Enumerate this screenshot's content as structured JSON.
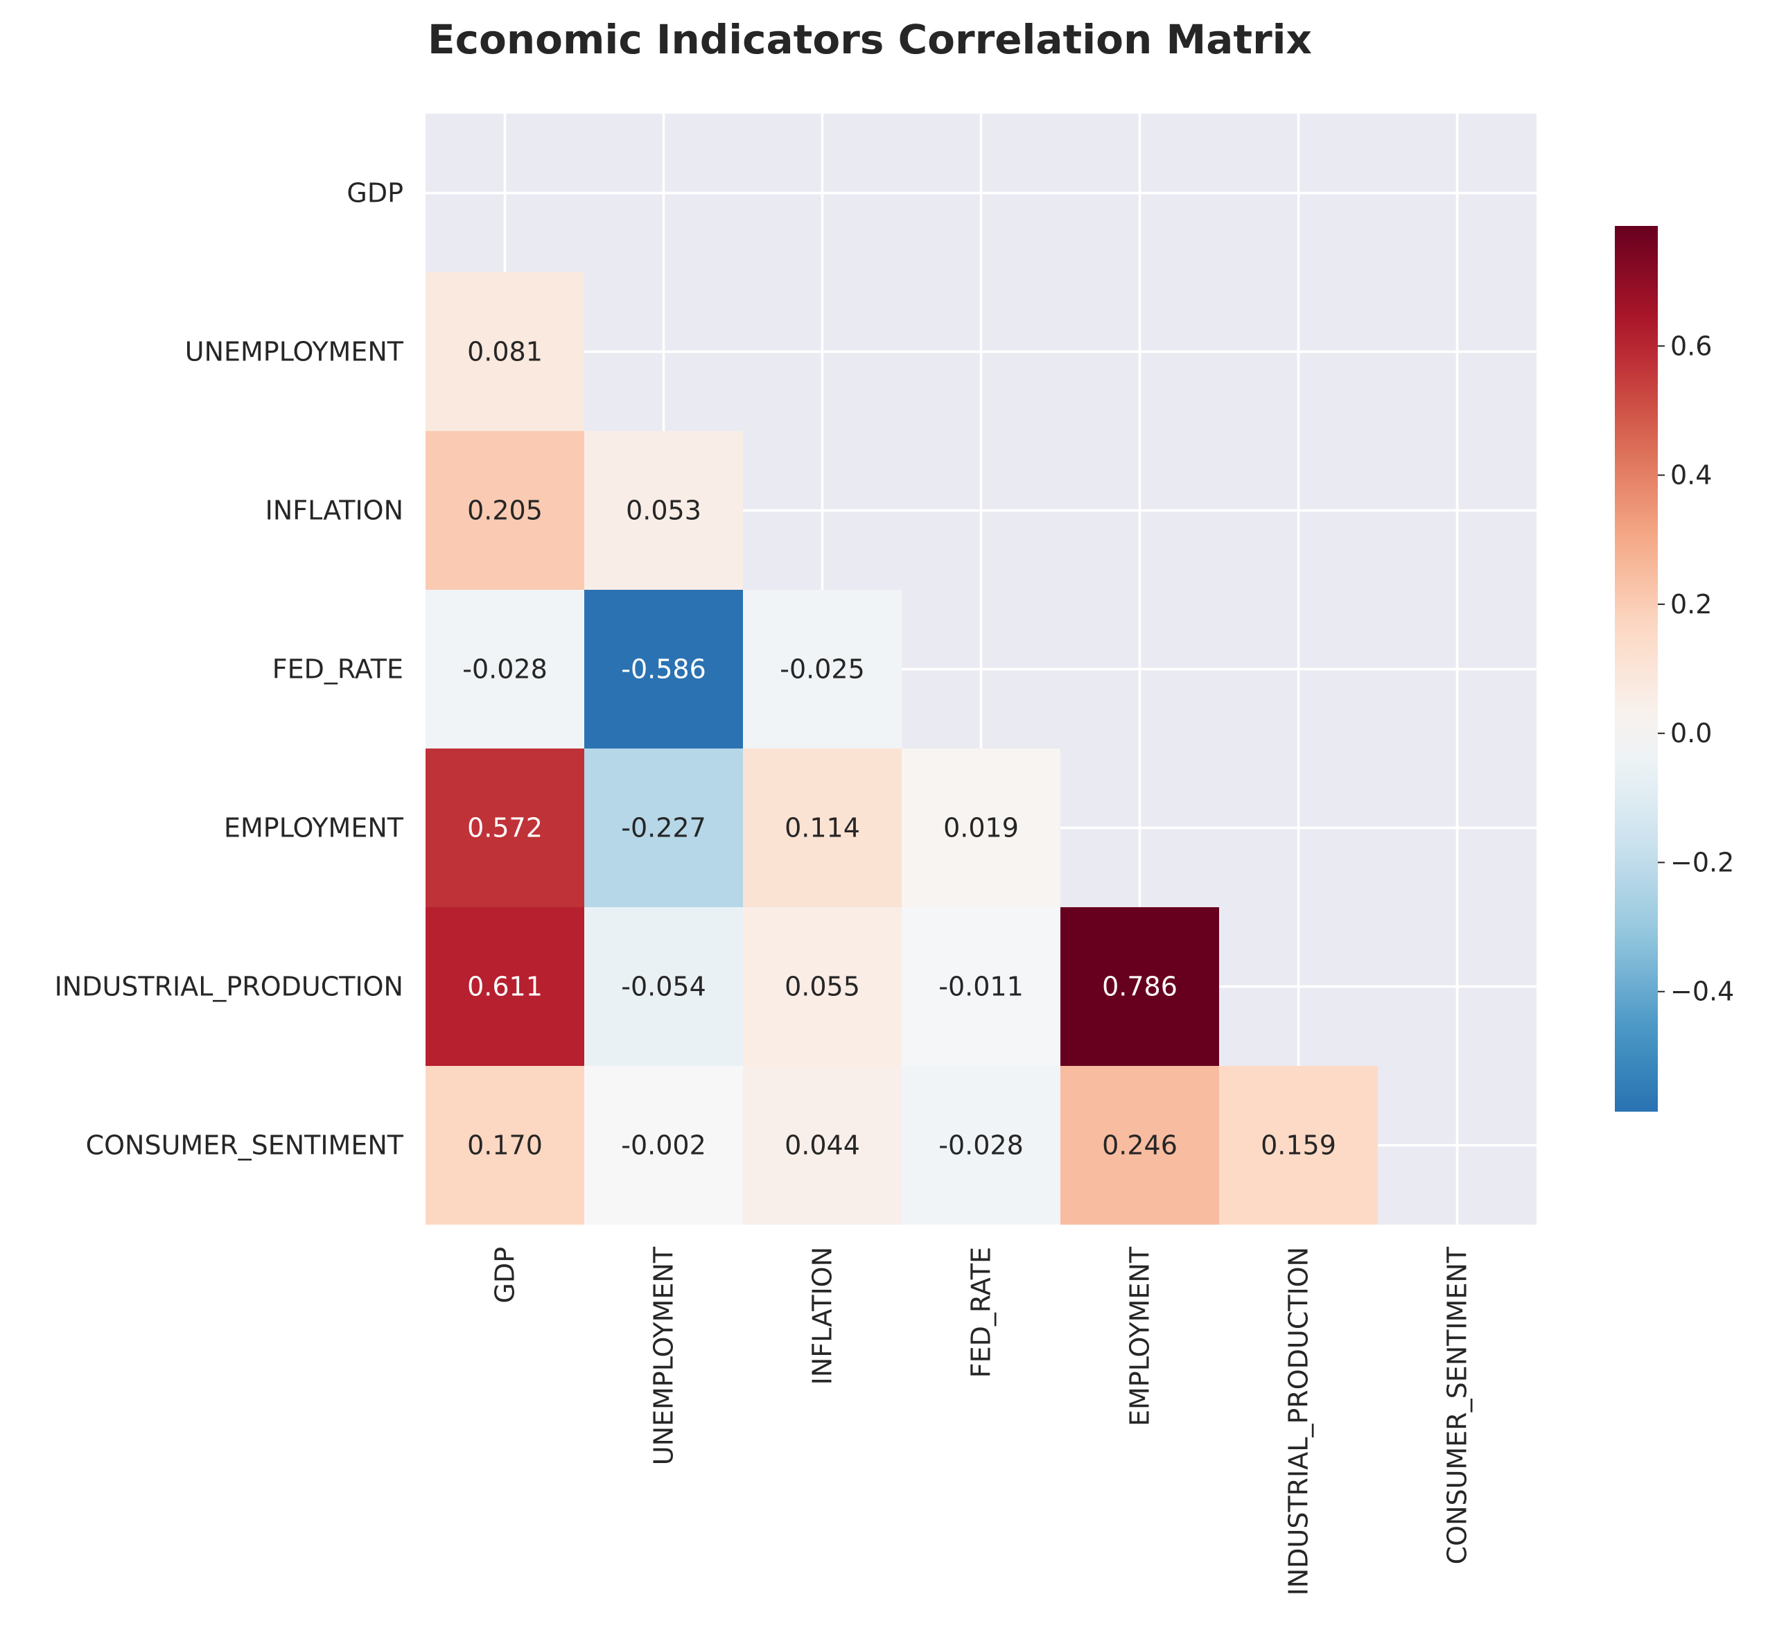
{
  "chart_data": {
    "type": "heatmap",
    "title": "Economic Indicators Correlation Matrix",
    "variables": [
      "GDP",
      "UNEMPLOYMENT",
      "INFLATION",
      "FED_RATE",
      "EMPLOYMENT",
      "INDUSTRIAL_PRODUCTION",
      "CONSUMER_SENTIMENT"
    ],
    "mask": "upper-triangle-including-diagonal",
    "cells": [
      {
        "row": 1,
        "col": 0,
        "value": 0.081,
        "label": "0.081"
      },
      {
        "row": 2,
        "col": 0,
        "value": 0.205,
        "label": "0.205"
      },
      {
        "row": 2,
        "col": 1,
        "value": 0.053,
        "label": "0.053"
      },
      {
        "row": 3,
        "col": 0,
        "value": -0.028,
        "label": "-0.028"
      },
      {
        "row": 3,
        "col": 1,
        "value": -0.586,
        "label": "-0.586"
      },
      {
        "row": 3,
        "col": 2,
        "value": -0.025,
        "label": "-0.025"
      },
      {
        "row": 4,
        "col": 0,
        "value": 0.572,
        "label": "0.572"
      },
      {
        "row": 4,
        "col": 1,
        "value": -0.227,
        "label": "-0.227"
      },
      {
        "row": 4,
        "col": 2,
        "value": 0.114,
        "label": "0.114"
      },
      {
        "row": 4,
        "col": 3,
        "value": 0.019,
        "label": "0.019"
      },
      {
        "row": 5,
        "col": 0,
        "value": 0.611,
        "label": "0.611"
      },
      {
        "row": 5,
        "col": 1,
        "value": -0.054,
        "label": "-0.054"
      },
      {
        "row": 5,
        "col": 2,
        "value": 0.055,
        "label": "0.055"
      },
      {
        "row": 5,
        "col": 3,
        "value": -0.011,
        "label": "-0.011"
      },
      {
        "row": 5,
        "col": 4,
        "value": 0.786,
        "label": "0.786"
      },
      {
        "row": 6,
        "col": 0,
        "value": 0.17,
        "label": "0.170"
      },
      {
        "row": 6,
        "col": 1,
        "value": -0.002,
        "label": "-0.002"
      },
      {
        "row": 6,
        "col": 2,
        "value": 0.044,
        "label": "0.044"
      },
      {
        "row": 6,
        "col": 3,
        "value": -0.028,
        "label": "-0.028"
      },
      {
        "row": 6,
        "col": 4,
        "value": 0.246,
        "label": "0.246"
      },
      {
        "row": 6,
        "col": 5,
        "value": 0.159,
        "label": "0.159"
      }
    ],
    "colormap": "RdBu_r",
    "colorbar": {
      "range": [
        -0.586,
        0.786
      ],
      "center": 0.0,
      "ticks": [
        {
          "value": 0.6,
          "label": "0.6"
        },
        {
          "value": 0.4,
          "label": "0.4"
        },
        {
          "value": 0.2,
          "label": "0.2"
        },
        {
          "value": 0.0,
          "label": "0.0"
        },
        {
          "value": -0.2,
          "label": "−0.2"
        },
        {
          "value": -0.4,
          "label": "−0.4"
        }
      ],
      "placement": "right"
    },
    "grid": true,
    "colors": {
      "background": "#eaeaf2",
      "gridline": "#ffffff",
      "text_dark": "#262626",
      "text_light": "#ffffff"
    }
  }
}
